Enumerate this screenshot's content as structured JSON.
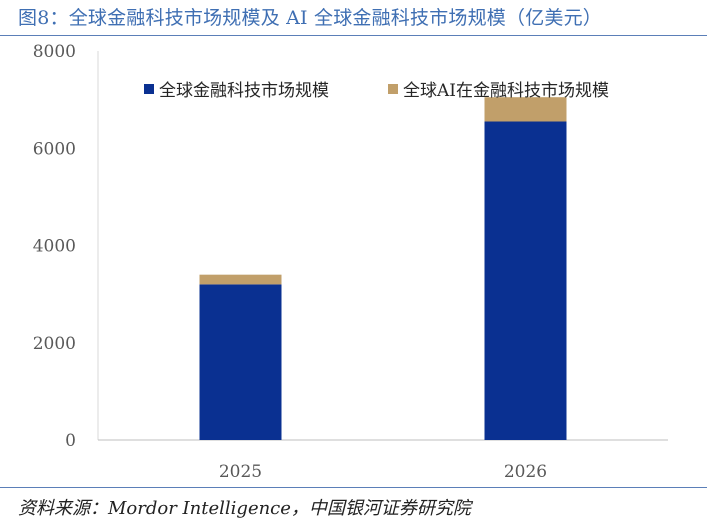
{
  "figure": {
    "title": "图8：全球金融科技市场规模及 AI 全球金融科技市场规模（亿美元）",
    "source": "资料来源：Mordor Intelligence，中国银河证券研究院"
  },
  "colors": {
    "title": "#3f6fb3",
    "rule": "#5b7fb8",
    "series_fintech": "#0a3091",
    "series_ai": "#c19f6a",
    "axis": "#bfbfbf",
    "tick_text": "#595959"
  },
  "chart_data": {
    "type": "bar",
    "stacked": true,
    "categories": [
      "2025",
      "2026"
    ],
    "series": [
      {
        "name": "全球金融科技市场规模",
        "values": [
          3200,
          6550
        ],
        "color": "#0a3091"
      },
      {
        "name": "全球AI在金融科技市场规模",
        "values": [
          200,
          500
        ],
        "color": "#c19f6a"
      }
    ],
    "ylim": [
      0,
      8000
    ],
    "yticks": [
      0,
      2000,
      4000,
      6000,
      8000
    ],
    "grid": false,
    "legend_position": "top",
    "xlabel": "",
    "ylabel": ""
  }
}
